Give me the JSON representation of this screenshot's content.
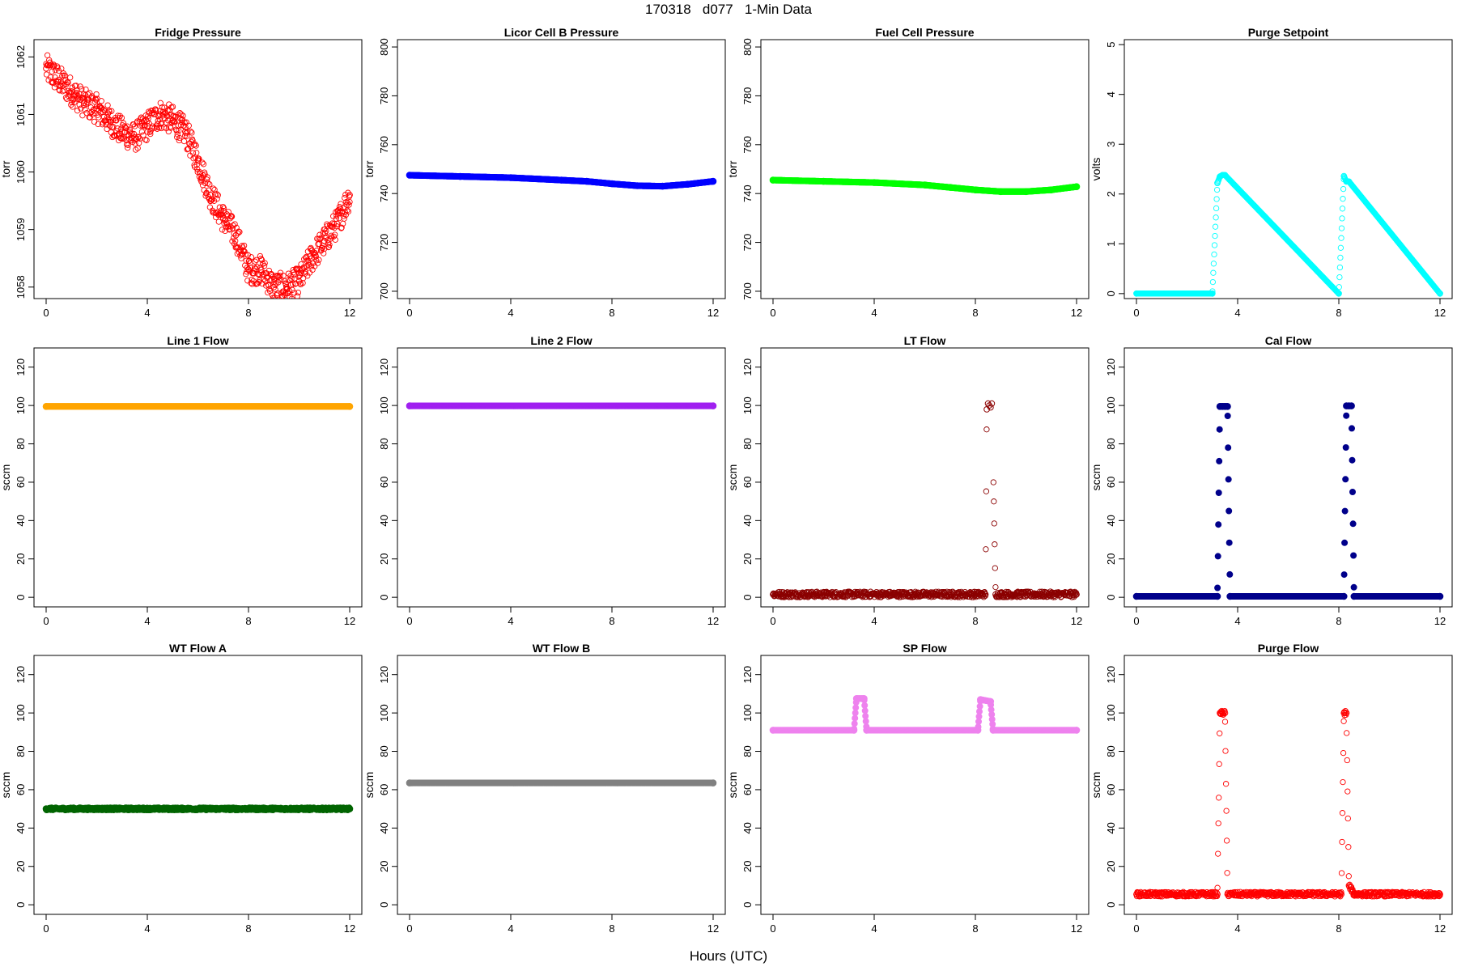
{
  "title": "170318   d077   1-Min Data",
  "xlabel": "Hours (UTC)",
  "chart_data": [
    {
      "type": "scatter",
      "title": "Fridge Pressure",
      "ylabel": "torr",
      "xlim": [
        0,
        12
      ],
      "ylim": [
        1057.8,
        1062.3
      ],
      "yticks": [
        1058,
        1059,
        1060,
        1061,
        1062
      ],
      "xticks": [
        0,
        4,
        8,
        12
      ],
      "grid": false,
      "color": "#ff0000",
      "marker": "open-circle",
      "series": [
        {
          "x": [
            0,
            0.5,
            1,
            1.5,
            2,
            2.5,
            3,
            3.5,
            4,
            4.5,
            5,
            5.5,
            6,
            6.5,
            7,
            7.5,
            8,
            8.5,
            9,
            9.5,
            10,
            10.5,
            11,
            11.5,
            12
          ],
          "y": [
            1061.8,
            1061.6,
            1061.4,
            1061.2,
            1061.1,
            1060.9,
            1060.7,
            1060.6,
            1060.8,
            1061.0,
            1060.9,
            1060.7,
            1060.2,
            1059.6,
            1059.2,
            1058.9,
            1058.3,
            1058.3,
            1058.0,
            1058.0,
            1058.1,
            1058.5,
            1058.8,
            1059.1,
            1059.6
          ],
          "noise": 0.25
        }
      ]
    },
    {
      "type": "scatter",
      "title": "Licor Cell B Pressure",
      "ylabel": "torr",
      "xlim": [
        0,
        12
      ],
      "ylim": [
        697,
        803
      ],
      "yticks": [
        700,
        720,
        740,
        760,
        780,
        800
      ],
      "xticks": [
        0,
        4,
        8,
        12
      ],
      "grid": false,
      "color": "#0000ff",
      "marker": "filled-circle",
      "series": [
        {
          "x": [
            0,
            2,
            4,
            6,
            7,
            8,
            9,
            10,
            11,
            12
          ],
          "y": [
            747.5,
            747.0,
            746.5,
            745.5,
            745.0,
            744.0,
            743.2,
            743.0,
            743.8,
            745.0
          ],
          "noise": 0
        }
      ]
    },
    {
      "type": "scatter",
      "title": "Fuel Cell Pressure",
      "ylabel": "torr",
      "xlim": [
        0,
        12
      ],
      "ylim": [
        697,
        803
      ],
      "yticks": [
        700,
        720,
        740,
        760,
        780,
        800
      ],
      "xticks": [
        0,
        4,
        8,
        12
      ],
      "grid": false,
      "color": "#00ff00",
      "marker": "filled-circle",
      "series": [
        {
          "x": [
            0,
            2,
            4,
            6,
            7,
            8,
            9,
            10,
            11,
            12
          ],
          "y": [
            745.5,
            745.0,
            744.5,
            743.5,
            742.5,
            741.5,
            740.8,
            740.8,
            741.5,
            742.8
          ],
          "noise": 0
        }
      ]
    },
    {
      "type": "scatter",
      "title": "Purge Setpoint",
      "ylabel": "volts",
      "xlim": [
        0,
        12
      ],
      "ylim": [
        -0.1,
        5.1
      ],
      "yticks": [
        0,
        1,
        2,
        3,
        4,
        5
      ],
      "xticks": [
        0,
        4,
        8,
        12
      ],
      "grid": false,
      "color": "#00ffff",
      "marker": "open-circle",
      "series": [
        {
          "x": [
            0,
            3,
            3.2,
            3.3,
            3.4,
            3.5,
            8,
            8.2,
            8.3,
            8.4,
            12
          ],
          "y": [
            0,
            0,
            2.22,
            2.35,
            2.38,
            2.38,
            0,
            2.36,
            2.25,
            2.25,
            0
          ],
          "noise": 0,
          "step": true
        }
      ]
    },
    {
      "type": "scatter",
      "title": "Line 1 Flow",
      "ylabel": "sccm",
      "xlim": [
        0,
        12
      ],
      "ylim": [
        -5,
        130
      ],
      "yticks": [
        0,
        20,
        40,
        60,
        80,
        100,
        120
      ],
      "xticks": [
        0,
        4,
        8,
        12
      ],
      "grid": false,
      "color": "#ffa500",
      "marker": "filled-circle",
      "series": [
        {
          "x": [
            0,
            12
          ],
          "y": [
            99.5,
            99.5
          ],
          "noise": 0
        }
      ]
    },
    {
      "type": "scatter",
      "title": "Line 2 Flow",
      "ylabel": "",
      "xlim": [
        0,
        12
      ],
      "ylim": [
        -5,
        130
      ],
      "yticks": [
        0,
        20,
        40,
        60,
        80,
        100,
        120
      ],
      "xticks": [
        0,
        4,
        8,
        12
      ],
      "grid": false,
      "color": "#a020f0",
      "marker": "filled-circle",
      "series": [
        {
          "x": [
            0,
            12
          ],
          "y": [
            99.8,
            99.8
          ],
          "noise": 0
        }
      ]
    },
    {
      "type": "scatter",
      "title": "LT Flow",
      "ylabel": "sccm",
      "xlim": [
        0,
        12
      ],
      "ylim": [
        -5,
        130
      ],
      "yticks": [
        0,
        20,
        40,
        60,
        80,
        100,
        120
      ],
      "xticks": [
        0,
        4,
        8,
        12
      ],
      "grid": false,
      "color": "#8b0000",
      "marker": "open-circle",
      "series": [
        {
          "x": [
            0,
            8.4,
            8.45,
            8.5,
            8.55,
            8.6,
            8.65,
            8.8,
            12
          ],
          "y": [
            1.5,
            1.5,
            98,
            101,
            100,
            99,
            101,
            1.5,
            1.5
          ],
          "noise": 1.5,
          "gap": [
            8.45,
            8.7
          ]
        }
      ]
    },
    {
      "type": "scatter",
      "title": "Cal Flow",
      "ylabel": "sccm",
      "xlim": [
        0,
        12
      ],
      "ylim": [
        -5,
        130
      ],
      "yticks": [
        0,
        20,
        40,
        60,
        80,
        100,
        120
      ],
      "xticks": [
        0,
        4,
        8,
        12
      ],
      "grid": false,
      "color": "#00008b",
      "marker": "filled-circle",
      "series": [
        {
          "x": [
            0,
            3.2,
            3.3,
            3.4,
            3.5,
            3.6,
            3.7,
            8.2,
            8.3,
            8.4,
            8.5,
            8.6,
            12
          ],
          "y": [
            0.5,
            0.5,
            99.5,
            99.5,
            99.5,
            99.5,
            0.5,
            0.5,
            99.8,
            99.8,
            99.8,
            0.5,
            0.5
          ],
          "noise": 0
        }
      ]
    },
    {
      "type": "scatter",
      "title": "WT Flow A",
      "ylabel": "sccm",
      "xlim": [
        0,
        12
      ],
      "ylim": [
        -5,
        130
      ],
      "yticks": [
        0,
        20,
        40,
        60,
        80,
        100,
        120
      ],
      "xticks": [
        0,
        4,
        8,
        12
      ],
      "grid": false,
      "color": "#006400",
      "marker": "filled-circle",
      "series": [
        {
          "x": [
            0,
            12
          ],
          "y": [
            50,
            50
          ],
          "noise": 0.6
        }
      ]
    },
    {
      "type": "scatter",
      "title": "WT Flow B",
      "ylabel": "sccm",
      "xlim": [
        0,
        12
      ],
      "ylim": [
        -5,
        130
      ],
      "yticks": [
        0,
        20,
        40,
        60,
        80,
        100,
        120
      ],
      "xticks": [
        0,
        4,
        8,
        12
      ],
      "grid": false,
      "color": "#808080",
      "marker": "filled-circle",
      "series": [
        {
          "x": [
            0,
            12
          ],
          "y": [
            63.5,
            63.5
          ],
          "noise": 0
        }
      ]
    },
    {
      "type": "scatter",
      "title": "SP Flow",
      "ylabel": "sccm",
      "xlim": [
        0,
        12
      ],
      "ylim": [
        -5,
        130
      ],
      "yticks": [
        0,
        20,
        40,
        60,
        80,
        100,
        120
      ],
      "xticks": [
        0,
        4,
        8,
        12
      ],
      "grid": false,
      "color": "#ee82ee",
      "marker": "filled-circle",
      "series": [
        {
          "x": [
            0,
            3.2,
            3.3,
            3.6,
            3.7,
            8.1,
            8.2,
            8.6,
            8.7,
            12
          ],
          "y": [
            91,
            91,
            107.5,
            107.5,
            91,
            91,
            107,
            106,
            91,
            91
          ],
          "noise": 0
        }
      ]
    },
    {
      "type": "scatter",
      "title": "Purge Flow",
      "ylabel": "sccm",
      "xlim": [
        0,
        12
      ],
      "ylim": [
        -5,
        130
      ],
      "yticks": [
        0,
        20,
        40,
        60,
        80,
        100,
        120
      ],
      "xticks": [
        0,
        4,
        8,
        12
      ],
      "grid": false,
      "color": "#ff0000",
      "marker": "open-circle",
      "series": [
        {
          "x": [
            0,
            3.2,
            3.3,
            3.4,
            3.5,
            3.6,
            8.1,
            8.2,
            8.3,
            8.4,
            8.5,
            8.6,
            12
          ],
          "y": [
            5.5,
            5.5,
            100,
            100,
            100,
            5.5,
            5.5,
            100,
            100,
            10,
            8,
            5.5,
            5.5
          ],
          "noise": 1.2
        }
      ]
    }
  ]
}
